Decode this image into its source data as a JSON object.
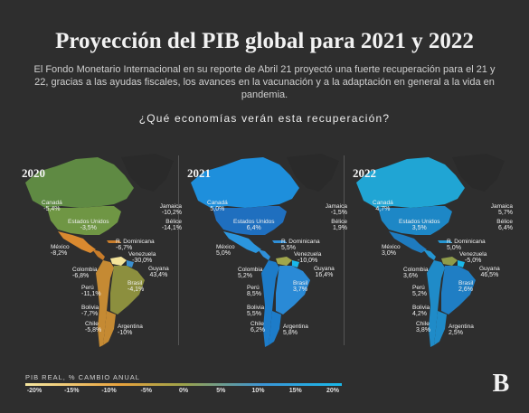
{
  "header": {
    "title": "Proyección del PIB global para 2021 y 2022",
    "subtitle": "El Fondo Monetario Internacional en su reporte de Abril 21 proyectó una fuerte recuperación para el 21 y 22, gracias a las ayudas fiscales, los avances en la vacunación y a la adaptación en general a la vida en pandemia.",
    "question": "¿Qué economías verán esta recuperación?"
  },
  "panels": [
    {
      "year": "2020",
      "countries": {
        "canada": {
          "name": "Canadá",
          "value": "-5,4%"
        },
        "usa": {
          "name": "Estados Unidos",
          "value": "-3,5%"
        },
        "mexico": {
          "name": "México",
          "value": "-8,2%"
        },
        "jamaica": {
          "name": "Jamaica",
          "value": "-10,2%"
        },
        "belice": {
          "name": "Bélice",
          "value": "-14,1%"
        },
        "rdominicana": {
          "name": "R. Dominicana",
          "value": "-6,7%"
        },
        "venezuela": {
          "name": "Venezuela",
          "value": "-30,0%"
        },
        "colombia": {
          "name": "Colombia",
          "value": "-6,8%"
        },
        "guyana": {
          "name": "Guyana",
          "value": "43,4%"
        },
        "peru": {
          "name": "Perú",
          "value": "-11,1%"
        },
        "brasil": {
          "name": "Brasil",
          "value": "-4,1%"
        },
        "bolivia": {
          "name": "Bolivia",
          "value": "-7,7%"
        },
        "chile": {
          "name": "Chile",
          "value": "-5,8%"
        },
        "argentina": {
          "name": "Argentina",
          "value": "-10%"
        }
      }
    },
    {
      "year": "2021",
      "countries": {
        "canada": {
          "name": "Canadá",
          "value": "5,0%"
        },
        "usa": {
          "name": "Estados Unidos",
          "value": "6,4%"
        },
        "mexico": {
          "name": "México",
          "value": "5,0%"
        },
        "jamaica": {
          "name": "Jamaica",
          "value": "-1,5%"
        },
        "belice": {
          "name": "Bélice",
          "value": "1,9%"
        },
        "rdominicana": {
          "name": "R. Dominicana",
          "value": "5,5%"
        },
        "venezuela": {
          "name": "Venezuela",
          "value": "-10,0%"
        },
        "colombia": {
          "name": "Colombia",
          "value": "5,2%"
        },
        "guyana": {
          "name": "Guyana",
          "value": "16,4%"
        },
        "peru": {
          "name": "Perú",
          "value": "8,5%"
        },
        "brasil": {
          "name": "Brasil",
          "value": "3,7%"
        },
        "bolivia": {
          "name": "Bolivia",
          "value": "5,5%"
        },
        "chile": {
          "name": "Chile",
          "value": "6,2%"
        },
        "argentina": {
          "name": "Argentina",
          "value": "5,8%"
        }
      }
    },
    {
      "year": "2022",
      "countries": {
        "canada": {
          "name": "Canadá",
          "value": "4,7%"
        },
        "usa": {
          "name": "Estados Unidos",
          "value": "3,5%"
        },
        "mexico": {
          "name": "México",
          "value": "3,0%"
        },
        "jamaica": {
          "name": "Jamaica",
          "value": "5,7%"
        },
        "belice": {
          "name": "Bélice",
          "value": "6,4%"
        },
        "rdominicana": {
          "name": "R. Dominicana",
          "value": "5,0%"
        },
        "venezuela": {
          "name": "Venezuela",
          "value": "-5,0%"
        },
        "colombia": {
          "name": "Colombia",
          "value": "3,6%"
        },
        "guyana": {
          "name": "Guyana",
          "value": "46,5%"
        },
        "peru": {
          "name": "Perú",
          "value": "5,2%"
        },
        "brasil": {
          "name": "Brasil",
          "value": "2,6%"
        },
        "bolivia": {
          "name": "Bolivia",
          "value": "4,2%"
        },
        "chile": {
          "name": "Chile",
          "value": "3,8%"
        },
        "argentina": {
          "name": "Argentina",
          "value": "2,5%"
        }
      }
    }
  ],
  "legend": {
    "title": "PIB REAL, % CAMBIO ANUAL",
    "ticks": [
      "-20%",
      "-15%",
      "-10%",
      "-5%",
      "0%",
      "5%",
      "10%",
      "15%",
      "20%"
    ],
    "colors": [
      "#f5e6a0",
      "#e8a23c",
      "#9ca24a",
      "#3b95d6",
      "#1ab7e8"
    ]
  },
  "brand": {
    "logo_letter": "B"
  },
  "map_colors": {
    "greenland": "#2a2a2a",
    "2020": {
      "canada": "#5f8a43",
      "usa": "#6f9644",
      "mexico": "#d9892f",
      "central": "#c87c2a",
      "south": "#c58a33",
      "brasil": "#8c8f3e",
      "guyana": "#3a8fd0",
      "venezuela": "#f3e39a"
    },
    "2021": {
      "canada": "#1e8fdc",
      "usa": "#1f6fbf",
      "mexico": "#2b96de",
      "central": "#2f8fd8",
      "south": "#1d7cc9",
      "brasil": "#2a8ad6",
      "guyana": "#19b8ea",
      "venezuela": "#a0a64c"
    },
    "2022": {
      "canada": "#20a5d4",
      "usa": "#1d87c6",
      "mexico": "#1e7bbf",
      "central": "#2596d2",
      "south": "#1f8bc8",
      "brasil": "#1f7ec4",
      "guyana": "#19b8ea",
      "venezuela": "#8e9b4a"
    }
  }
}
